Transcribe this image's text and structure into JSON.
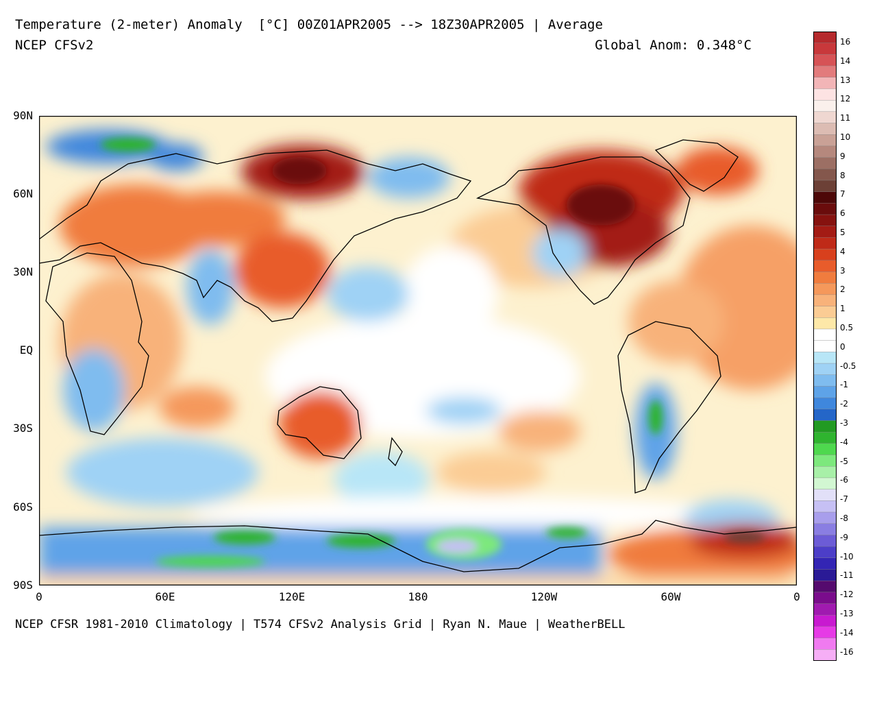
{
  "header": {
    "title": "Temperature (2-meter) Anomaly  [°C] 00Z01APR2005 --> 18Z30APR2005 | Average",
    "subtitle": "NCEP CFSv2",
    "global_anom": "Global Anom: 0.348°C"
  },
  "footer": {
    "credit": "NCEP CFSR 1981-2010 Climatology | T574 CFSv2 Analysis Grid | Ryan N. Maue | WeatherBELL"
  },
  "axes": {
    "lat_labels": [
      "90N",
      "60N",
      "30N",
      "EQ",
      "30S",
      "60S",
      "90S"
    ],
    "lon_labels": [
      "0",
      "60E",
      "120E",
      "180",
      "120W",
      "60W",
      "0"
    ]
  },
  "colorbar": {
    "labels": [
      "16",
      "14",
      "13",
      "12",
      "11",
      "10",
      "9",
      "8",
      "7",
      "6",
      "5",
      "4",
      "3",
      "2",
      "1",
      "0.5",
      "0",
      "-0.5",
      "-1",
      "-2",
      "-3",
      "-4",
      "-5",
      "-6",
      "-7",
      "-8",
      "-9",
      "-10",
      "-11",
      "-12",
      "-13",
      "-14",
      "-16"
    ],
    "colors": [
      "#b52a2d",
      "#c8383b",
      "#d65356",
      "#e27b7c",
      "#f2b5b7",
      "#fde3e3",
      "#faf0ec",
      "#efd7d1",
      "#dcbcb3",
      "#c9a196",
      "#b5887d",
      "#9c6f64",
      "#84574c",
      "#6c4036",
      "#4d0808",
      "#6a0c0c",
      "#86120f",
      "#a31b14",
      "#bf2a18",
      "#d8401d",
      "#e85c2b",
      "#f07c3e",
      "#f5985b",
      "#f8b27a",
      "#fbcc94",
      "#fde8a8",
      "#ffffff",
      "#ffffff",
      "#b8e6f7",
      "#9fd2f5",
      "#7fbcef",
      "#5ea3e8",
      "#3f87dd",
      "#2466c8",
      "#229a22",
      "#2fb42f",
      "#4ed84e",
      "#7de87d",
      "#a8f0a8",
      "#d2f7d2",
      "#e2e0f8",
      "#c6c0f4",
      "#a89eec",
      "#8a7ee2",
      "#6c5cd6",
      "#4c3ec8",
      "#3325b4",
      "#2a1a96",
      "#550a6e",
      "#7a0c8c",
      "#a01ab0",
      "#c81ad0",
      "#e63ae6",
      "#f07af0",
      "#f6aef6"
    ]
  },
  "map_data": {
    "field": "2m temperature anomaly",
    "units": "°C",
    "lon_range": [
      0,
      360
    ],
    "lat_range": [
      -90,
      90
    ],
    "anomaly_regions": [
      {
        "lon": 125,
        "lat": 67,
        "value": 6,
        "region": "Central Siberia"
      },
      {
        "lon": 265,
        "lat": 55,
        "value": 6,
        "region": "Central Canada"
      },
      {
        "lon": 300,
        "lat": 70,
        "value": 4,
        "region": "Greenland"
      },
      {
        "lon": 135,
        "lat": -25,
        "value": 3,
        "region": "Australia"
      },
      {
        "lon": 115,
        "lat": 32,
        "value": 3,
        "region": "China"
      },
      {
        "lon": 330,
        "lat": -72,
        "value": 6,
        "region": "Weddell Sea"
      },
      {
        "lon": 35,
        "lat": 74,
        "value": -4,
        "region": "Barents Sea"
      },
      {
        "lon": 80,
        "lat": 20,
        "value": -2,
        "region": "India"
      },
      {
        "lon": 190,
        "lat": -80,
        "value": -8,
        "region": "Ross Ice Shelf"
      },
      {
        "lon": 90,
        "lat": -75,
        "value": -4,
        "region": "East Antarctica"
      },
      {
        "lon": 295,
        "lat": -30,
        "value": -3,
        "region": "Argentina"
      },
      {
        "lon": 40,
        "lat": -45,
        "value": -2,
        "region": "Southern Indian Ocean"
      },
      {
        "lon": 330,
        "lat": 15,
        "value": 1,
        "region": "Tropical Atlantic"
      },
      {
        "lon": 200,
        "lat": 30,
        "value": 1,
        "region": "North Pacific"
      }
    ]
  }
}
